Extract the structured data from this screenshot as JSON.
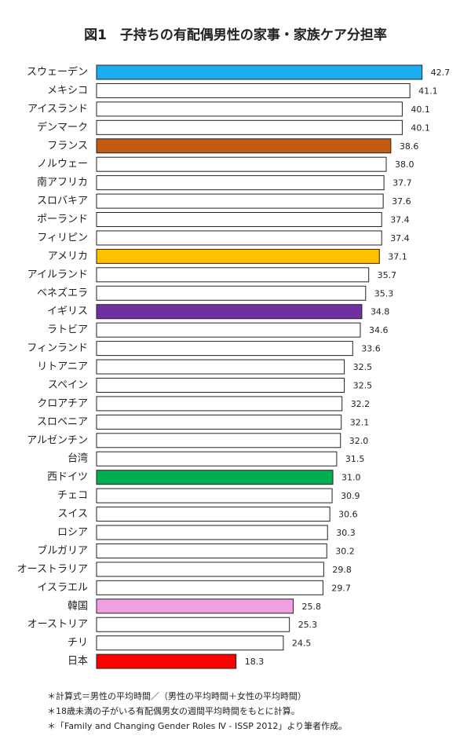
{
  "chart_data": {
    "type": "barh",
    "title": "図1　子持ちの有配偶男性の家事・家族ケア分担率",
    "categories": [
      "スウェーデン",
      "メキシコ",
      "アイスランド",
      "デンマーク",
      "フランス",
      "ノルウェー",
      "南アフリカ",
      "スロバキア",
      "ポーランド",
      "フィリピン",
      "アメリカ",
      "アイルランド",
      "ベネズエラ",
      "イギリス",
      "ラトビア",
      "フィンランド",
      "リトアニア",
      "スペイン",
      "クロアチア",
      "スロベニア",
      "アルゼンチン",
      "台湾",
      "西ドイツ",
      "チェコ",
      "スイス",
      "ロシア",
      "ブルガリア",
      "オーストラリア",
      "イスラエル",
      "韓国",
      "オーストリア",
      "チリ",
      "日本"
    ],
    "values": [
      42.7,
      41.1,
      40.1,
      40.1,
      38.6,
      38.0,
      37.7,
      37.6,
      37.4,
      37.4,
      37.1,
      35.7,
      35.3,
      34.8,
      34.6,
      33.6,
      32.5,
      32.5,
      32.2,
      32.1,
      32.0,
      31.5,
      31.0,
      30.9,
      30.6,
      30.3,
      30.2,
      29.8,
      29.7,
      25.8,
      25.3,
      24.5,
      18.3
    ],
    "value_labels": [
      "42.7",
      "41.1",
      "40.1",
      "40.1",
      "38.6",
      "38.0",
      "37.7",
      "37.6",
      "37.4",
      "37.4",
      "37.1",
      "35.7",
      "35.3",
      "34.8",
      "34.6",
      "33.6",
      "32.5",
      "32.5",
      "32.2",
      "32.1",
      "32.0",
      "31.5",
      "31.0",
      "30.9",
      "30.6",
      "30.3",
      "30.2",
      "29.8",
      "29.7",
      "25.8",
      "25.3",
      "24.5",
      "18.3"
    ],
    "colors": [
      "#1aaef0",
      "#ffffff",
      "#ffffff",
      "#ffffff",
      "#c55a11",
      "#ffffff",
      "#ffffff",
      "#ffffff",
      "#ffffff",
      "#ffffff",
      "#ffc000",
      "#ffffff",
      "#ffffff",
      "#7030a0",
      "#ffffff",
      "#ffffff",
      "#ffffff",
      "#ffffff",
      "#ffffff",
      "#ffffff",
      "#ffffff",
      "#ffffff",
      "#00b050",
      "#ffffff",
      "#ffffff",
      "#ffffff",
      "#ffffff",
      "#ffffff",
      "#ffffff",
      "#f0a0e0",
      "#ffffff",
      "#ffffff",
      "#ff0000"
    ],
    "xlim": [
      0,
      45
    ],
    "notes": [
      "＊計算式＝男性の平均時間／（男性の平均時間＋女性の平均時間）",
      "＊18歳未満の子がいる有配偶男女の週間平均時間をもとに計算。",
      "＊「Family and Changing Gender Roles Ⅳ - ISSP 2012」より筆者作成。"
    ]
  }
}
